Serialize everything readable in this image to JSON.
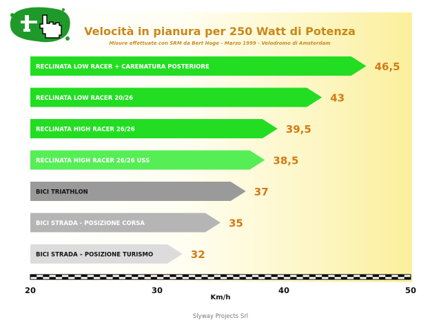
{
  "title": "Velocità in pianura per 250 Watt di Potenza",
  "subtitle": "Misure effettuate con SRM da Bert Hoge - Marzo 1999 - Velodromo di Amsterdam",
  "footer": "Slyway Projects Srl",
  "logo_icon": "hand-pointer-icon",
  "colors": {
    "value_label": "#d37a15",
    "bar_bright_green": "#22dd22",
    "bar_light_green": "#55ee55",
    "bar_dark_gray": "#9a9a9a",
    "bar_mid_gray": "#b5b5b5",
    "bar_light_gray": "#dcdcdc"
  },
  "chart_data": {
    "type": "bar",
    "orientation": "horizontal",
    "categories": [
      "RECLINATA LOW RACER  + CARENATURA POSTERIORE",
      "RECLINATA LOW RACER  20/26",
      "RECLINATA HIGH RACER  26/26",
      "RECLINATA HIGH RACER  26/26  USS",
      "BICI TRIATHLON",
      "BICI STRADA - POSIZIONE CORSA",
      "BICI STRADA – POSIZIONE TURISMO"
    ],
    "values": [
      46.5,
      43,
      39.5,
      38.5,
      37,
      35,
      32
    ],
    "value_labels": [
      "46,5",
      "43",
      "39,5",
      "38,5",
      "37",
      "35",
      "32"
    ],
    "bar_colors": [
      "#22dd22",
      "#22dd22",
      "#22dd22",
      "#55ee55",
      "#9a9a9a",
      "#b5b5b5",
      "#dcdcdc"
    ],
    "label_colors": [
      "#ffffff",
      "#ffffff",
      "#ffffff",
      "#ffffff",
      "#111111",
      "#ffffff",
      "#111111"
    ],
    "xlabel": "Km/h",
    "xlim": [
      20,
      50
    ],
    "xticks": [
      20,
      30,
      40,
      50
    ],
    "grid": false,
    "legend": "none"
  }
}
